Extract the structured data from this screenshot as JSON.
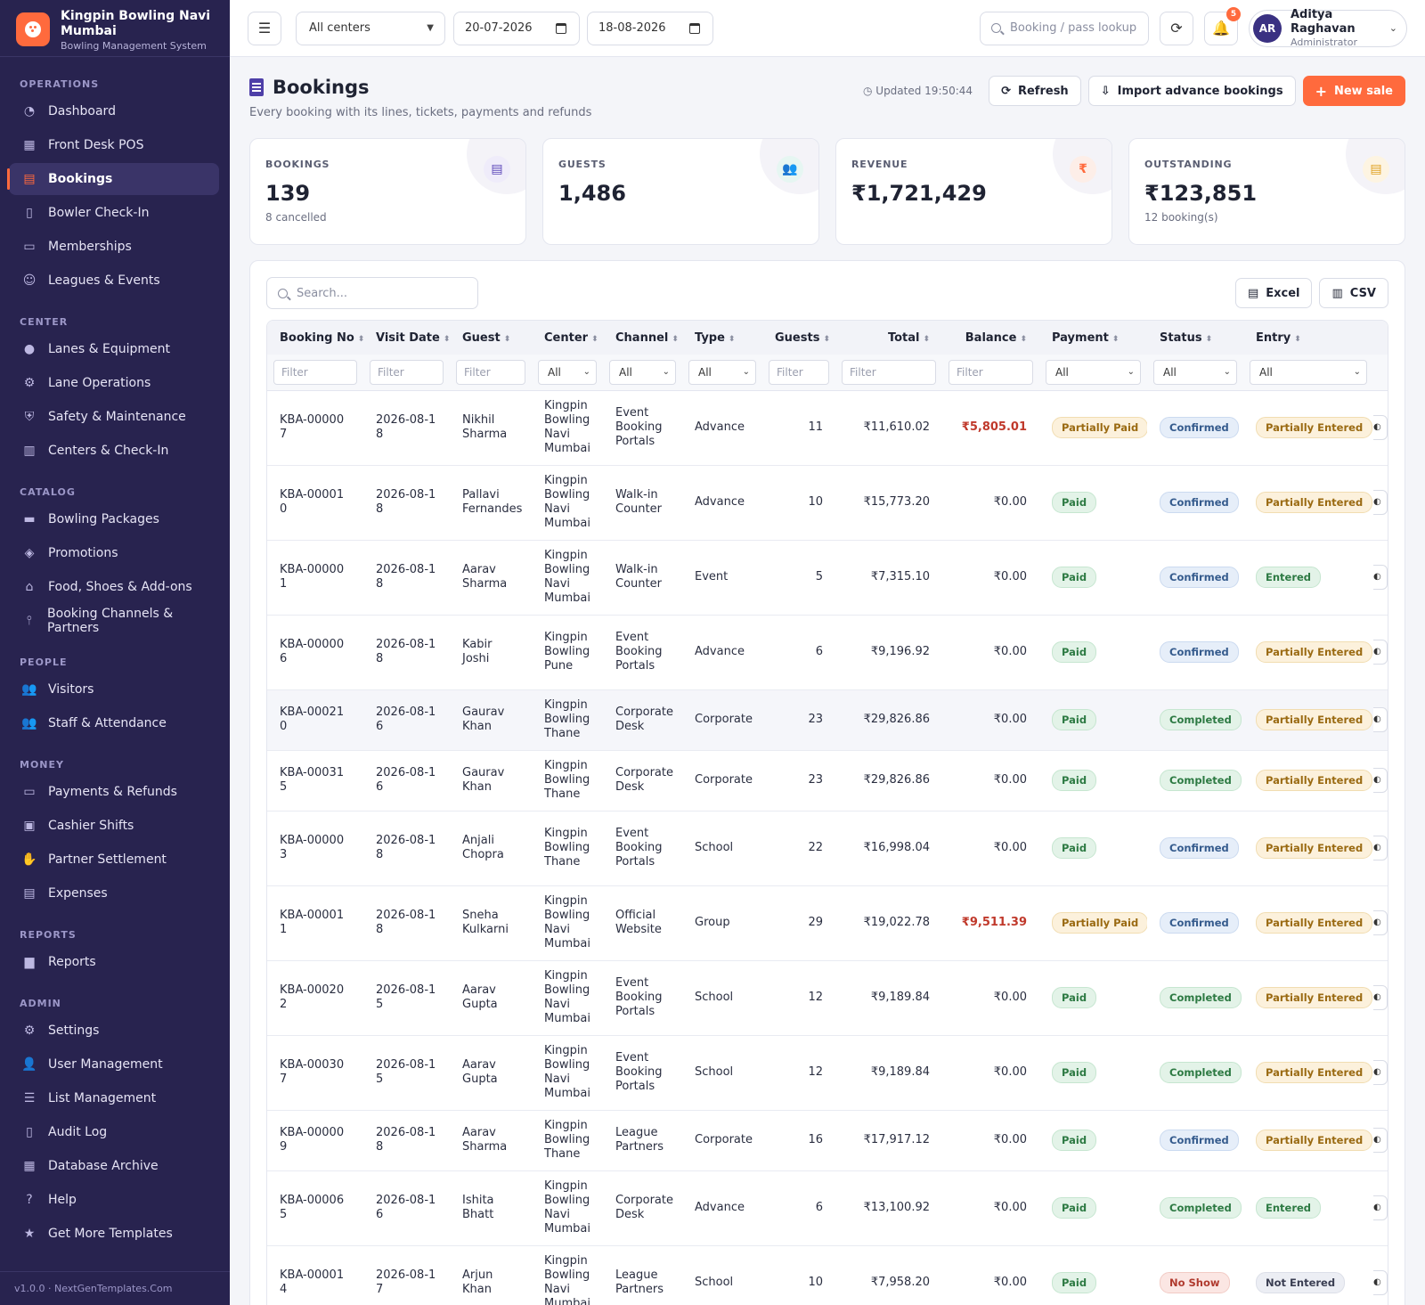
{
  "brand": {
    "name": "Kingpin Bowling Navi Mumbai",
    "subtitle": "Bowling Management System"
  },
  "sidebar": {
    "sections": [
      {
        "title": "OPERATIONS",
        "items": [
          {
            "label": "Dashboard",
            "icon": "dashboard-icon"
          },
          {
            "label": "Front Desk POS",
            "icon": "register-icon"
          },
          {
            "label": "Bookings",
            "icon": "bookings-icon",
            "active": true
          },
          {
            "label": "Bowler Check-In",
            "icon": "door-icon"
          },
          {
            "label": "Memberships",
            "icon": "id-card-icon"
          },
          {
            "label": "Leagues & Events",
            "icon": "masks-icon"
          }
        ]
      },
      {
        "title": "CENTER",
        "items": [
          {
            "label": "Lanes & Equipment",
            "icon": "bowling-ball-icon"
          },
          {
            "label": "Lane Operations",
            "icon": "gears-icon"
          },
          {
            "label": "Safety & Maintenance",
            "icon": "shield-icon"
          },
          {
            "label": "Centers & Check-In",
            "icon": "building-icon"
          }
        ]
      },
      {
        "title": "CATALOG",
        "items": [
          {
            "label": "Bowling Packages",
            "icon": "package-icon"
          },
          {
            "label": "Promotions",
            "icon": "tags-icon"
          },
          {
            "label": "Food, Shoes & Add-ons",
            "icon": "basket-icon"
          },
          {
            "label": "Booking Channels & Partners",
            "icon": "broadcast-icon"
          }
        ]
      },
      {
        "title": "PEOPLE",
        "items": [
          {
            "label": "Visitors",
            "icon": "users-icon"
          },
          {
            "label": "Staff & Attendance",
            "icon": "user-group-icon"
          }
        ]
      },
      {
        "title": "MONEY",
        "items": [
          {
            "label": "Payments & Refunds",
            "icon": "credit-card-icon"
          },
          {
            "label": "Cashier Shifts",
            "icon": "cash-icon"
          },
          {
            "label": "Partner Settlement",
            "icon": "handshake-icon"
          },
          {
            "label": "Expenses",
            "icon": "wallet-icon"
          }
        ]
      },
      {
        "title": "REPORTS",
        "items": [
          {
            "label": "Reports",
            "icon": "bar-chart-icon"
          }
        ]
      },
      {
        "title": "ADMIN",
        "items": [
          {
            "label": "Settings",
            "icon": "gear-icon"
          },
          {
            "label": "User Management",
            "icon": "user-cog-icon"
          },
          {
            "label": "List Management",
            "icon": "list-icon"
          },
          {
            "label": "Audit Log",
            "icon": "clipboard-icon"
          },
          {
            "label": "Database Archive",
            "icon": "archive-icon"
          },
          {
            "label": "Help",
            "icon": "help-icon"
          },
          {
            "label": "Get More Templates",
            "icon": "star-icon"
          }
        ]
      }
    ],
    "footer": "v1.0.0 · NextGenTemplates.Com"
  },
  "topbar": {
    "center_select": "All centers",
    "date_from": "20-07-2026",
    "date_to": "18-08-2026",
    "lookup_placeholder": "Booking / pass lookup",
    "notification_count": "5",
    "user": {
      "initials": "AR",
      "name": "Aditya Raghavan",
      "role": "Administrator"
    }
  },
  "page": {
    "title": "Bookings",
    "subtitle": "Every booking with its lines, tickets, payments and refunds",
    "updated": "Updated 19:50:44",
    "refresh_label": "Refresh",
    "import_label": "Import advance bookings",
    "new_sale_label": "New sale"
  },
  "stats": [
    {
      "label": "BOOKINGS",
      "value": "139",
      "sub": "8 cancelled",
      "icon": "bookings-icon",
      "color": "#5b45b8",
      "tint": "#efecfa"
    },
    {
      "label": "GUESTS",
      "value": "1,486",
      "sub": "",
      "icon": "users-icon",
      "color": "#1aa58a",
      "tint": "#e6f6f2"
    },
    {
      "label": "REVENUE",
      "value": "₹1,721,429",
      "sub": "",
      "icon": "rupee-icon",
      "color": "#ff6a3d",
      "tint": "#fdeee8"
    },
    {
      "label": "OUTSTANDING",
      "value": "₹123,851",
      "sub": "12 booking(s)",
      "icon": "invoice-icon",
      "color": "#e0a020",
      "tint": "#fdf4e2"
    }
  ],
  "table": {
    "search_placeholder": "Search...",
    "excel_label": "Excel",
    "csv_label": "CSV",
    "columns": [
      "Booking No",
      "Visit Date",
      "Guest",
      "Center",
      "Channel",
      "Type",
      "Guests",
      "Total",
      "Balance",
      "Payment",
      "Status",
      "Entry"
    ],
    "filter_placeholder": "Filter",
    "filter_select": "All",
    "rows": [
      {
        "no": "KBA-000007",
        "date": "2026-08-18",
        "guest": "Nikhil Sharma",
        "center": "Kingpin Bowling Navi Mumbai",
        "channel": "Event Booking Portals",
        "type": "Advance",
        "guests": "11",
        "total": "₹11,610.02",
        "balance": "₹5,805.01",
        "due": true,
        "payment": "Partially Paid",
        "status": "Confirmed",
        "entry": "Partially Entered"
      },
      {
        "no": "KBA-000010",
        "date": "2026-08-18",
        "guest": "Pallavi Fernandes",
        "center": "Kingpin Bowling Navi Mumbai",
        "channel": "Walk-in Counter",
        "type": "Advance",
        "guests": "10",
        "total": "₹15,773.20",
        "balance": "₹0.00",
        "due": false,
        "payment": "Paid",
        "status": "Confirmed",
        "entry": "Partially Entered"
      },
      {
        "no": "KBA-000001",
        "date": "2026-08-18",
        "guest": "Aarav Sharma",
        "center": "Kingpin Bowling Navi Mumbai",
        "channel": "Walk-in Counter",
        "type": "Event",
        "guests": "5",
        "total": "₹7,315.10",
        "balance": "₹0.00",
        "due": false,
        "payment": "Paid",
        "status": "Confirmed",
        "entry": "Entered"
      },
      {
        "no": "KBA-000006",
        "date": "2026-08-18",
        "guest": "Kabir Joshi",
        "center": "Kingpin Bowling Pune",
        "channel": "Event Booking Portals",
        "type": "Advance",
        "guests": "6",
        "total": "₹9,196.92",
        "balance": "₹0.00",
        "due": false,
        "payment": "Paid",
        "status": "Confirmed",
        "entry": "Partially Entered"
      },
      {
        "no": "KBA-000210",
        "date": "2026-08-16",
        "guest": "Gaurav Khan",
        "center": "Kingpin Bowling Thane",
        "channel": "Corporate Desk",
        "type": "Corporate",
        "guests": "23",
        "total": "₹29,826.86",
        "balance": "₹0.00",
        "due": false,
        "payment": "Paid",
        "status": "Completed",
        "entry": "Partially Entered",
        "highlight": true
      },
      {
        "no": "KBA-000315",
        "date": "2026-08-16",
        "guest": "Gaurav Khan",
        "center": "Kingpin Bowling Thane",
        "channel": "Corporate Desk",
        "type": "Corporate",
        "guests": "23",
        "total": "₹29,826.86",
        "balance": "₹0.00",
        "due": false,
        "payment": "Paid",
        "status": "Completed",
        "entry": "Partially Entered"
      },
      {
        "no": "KBA-000003",
        "date": "2026-08-18",
        "guest": "Anjali Chopra",
        "center": "Kingpin Bowling Thane",
        "channel": "Event Booking Portals",
        "type": "School",
        "guests": "22",
        "total": "₹16,998.04",
        "balance": "₹0.00",
        "due": false,
        "payment": "Paid",
        "status": "Confirmed",
        "entry": "Partially Entered"
      },
      {
        "no": "KBA-000011",
        "date": "2026-08-18",
        "guest": "Sneha Kulkarni",
        "center": "Kingpin Bowling Navi Mumbai",
        "channel": "Official Website",
        "type": "Group",
        "guests": "29",
        "total": "₹19,022.78",
        "balance": "₹9,511.39",
        "due": true,
        "payment": "Partially Paid",
        "status": "Confirmed",
        "entry": "Partially Entered"
      },
      {
        "no": "KBA-000202",
        "date": "2026-08-15",
        "guest": "Aarav Gupta",
        "center": "Kingpin Bowling Navi Mumbai",
        "channel": "Event Booking Portals",
        "type": "School",
        "guests": "12",
        "total": "₹9,189.84",
        "balance": "₹0.00",
        "due": false,
        "payment": "Paid",
        "status": "Completed",
        "entry": "Partially Entered"
      },
      {
        "no": "KBA-000307",
        "date": "2026-08-15",
        "guest": "Aarav Gupta",
        "center": "Kingpin Bowling Navi Mumbai",
        "channel": "Event Booking Portals",
        "type": "School",
        "guests": "12",
        "total": "₹9,189.84",
        "balance": "₹0.00",
        "due": false,
        "payment": "Paid",
        "status": "Completed",
        "entry": "Partially Entered"
      },
      {
        "no": "KBA-000009",
        "date": "2026-08-18",
        "guest": "Aarav Sharma",
        "center": "Kingpin Bowling Thane",
        "channel": "League Partners",
        "type": "Corporate",
        "guests": "16",
        "total": "₹17,917.12",
        "balance": "₹0.00",
        "due": false,
        "payment": "Paid",
        "status": "Confirmed",
        "entry": "Partially Entered"
      },
      {
        "no": "KBA-000065",
        "date": "2026-08-16",
        "guest": "Ishita Bhatt",
        "center": "Kingpin Bowling Navi Mumbai",
        "channel": "Corporate Desk",
        "type": "Advance",
        "guests": "6",
        "total": "₹13,100.92",
        "balance": "₹0.00",
        "due": false,
        "payment": "Paid",
        "status": "Completed",
        "entry": "Entered"
      },
      {
        "no": "KBA-000014",
        "date": "2026-08-17",
        "guest": "Arjun Khan",
        "center": "Kingpin Bowling Navi Mumbai",
        "channel": "League Partners",
        "type": "School",
        "guests": "10",
        "total": "₹7,958.20",
        "balance": "₹0.00",
        "due": false,
        "payment": "Paid",
        "status": "No Show",
        "entry": "Not Entered"
      }
    ]
  }
}
